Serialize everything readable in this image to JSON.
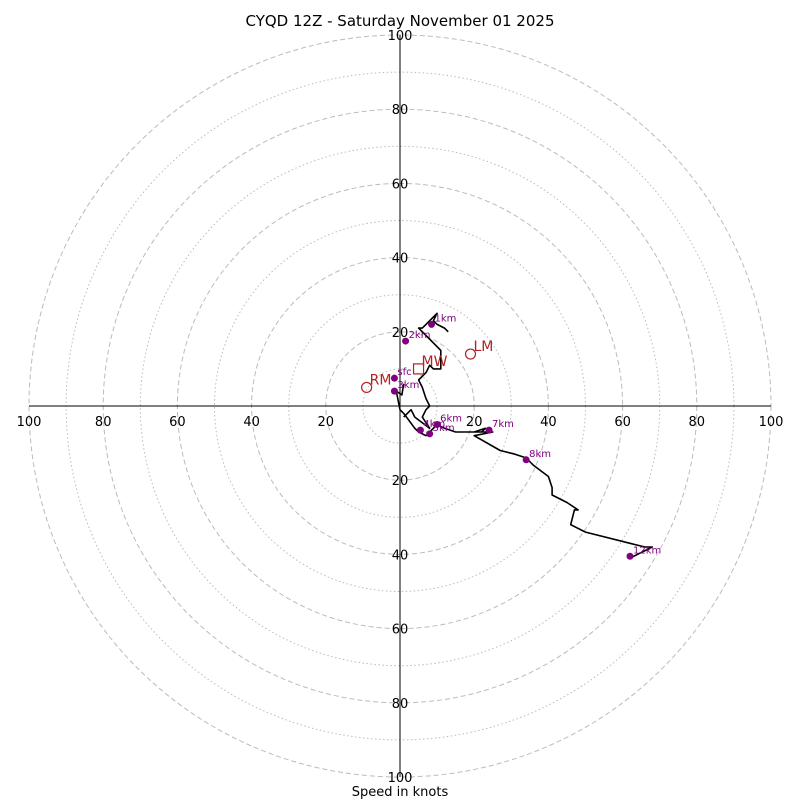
{
  "chart_data": {
    "type": "hodograph",
    "title": "CYQD 12Z - Saturday November 01 2025",
    "xlabel": "Speed in knots",
    "rings": {
      "major_step": 20,
      "minor_step": 10,
      "max": 100
    },
    "tick_labels": [
      "20",
      "40",
      "60",
      "80",
      "100"
    ],
    "trace": [
      [
        1,
        6
      ],
      [
        0.5,
        3
      ],
      [
        -1,
        4
      ],
      [
        0,
        -1
      ],
      [
        1,
        -2
      ],
      [
        4,
        -6
      ],
      [
        5,
        -7
      ],
      [
        7,
        -8
      ],
      [
        8,
        -7
      ],
      [
        10,
        -5
      ],
      [
        12,
        -6
      ],
      [
        15,
        -7
      ],
      [
        19,
        -7
      ],
      [
        22,
        -7
      ],
      [
        23,
        -6
      ],
      [
        20,
        -7
      ],
      [
        24,
        -7
      ],
      [
        25,
        -7
      ],
      [
        20,
        -8
      ],
      [
        27,
        -12
      ],
      [
        31,
        -13
      ],
      [
        34,
        -14
      ],
      [
        36,
        -16
      ],
      [
        40,
        -19
      ],
      [
        41,
        -22
      ],
      [
        41,
        -24
      ],
      [
        45,
        -26
      ],
      [
        48,
        -28
      ],
      [
        47,
        -28
      ],
      [
        46,
        -32
      ],
      [
        50,
        -34
      ],
      [
        62,
        -37
      ],
      [
        66,
        -38
      ],
      [
        68,
        -38
      ],
      [
        62,
        -41
      ],
      null,
      [
        1,
        -3
      ],
      [
        3,
        -1
      ],
      [
        4,
        -3
      ],
      [
        8,
        -6
      ],
      [
        6,
        -3
      ],
      [
        7,
        -1
      ],
      [
        8,
        0
      ],
      [
        7,
        2
      ],
      [
        6,
        5
      ],
      [
        5,
        7
      ],
      [
        7,
        9
      ],
      [
        8,
        11
      ],
      [
        9,
        10
      ],
      [
        11,
        10
      ],
      [
        11,
        13
      ],
      [
        11,
        15
      ],
      [
        9,
        17
      ],
      [
        7,
        19
      ],
      [
        5,
        21
      ],
      [
        6,
        21
      ],
      [
        7,
        22
      ],
      [
        8,
        23
      ],
      [
        9,
        24
      ],
      [
        10,
        25
      ],
      [
        9,
        23
      ],
      [
        10,
        22
      ],
      [
        12,
        21
      ],
      [
        13,
        20
      ]
    ],
    "height_markers": [
      {
        "label": "sfc",
        "u": -1.5,
        "v": 7.5
      },
      {
        "label": "1km",
        "u": 8.5,
        "v": 22
      },
      {
        "label": "2km",
        "u": 1.5,
        "v": 17.5
      },
      {
        "label": "3km",
        "u": -1.5,
        "v": 4
      },
      {
        "label": "4km",
        "u": 5.5,
        "v": -6.5
      },
      {
        "label": "5km",
        "u": 8,
        "v": -7.5
      },
      {
        "label": "6km",
        "u": 10,
        "v": -5
      },
      {
        "label": "7km",
        "u": 24,
        "v": -6.5
      },
      {
        "label": "8km",
        "u": 34,
        "v": -14.5
      },
      {
        "label": "12km",
        "u": 62,
        "v": -40.5
      }
    ],
    "motion_markers": [
      {
        "label": "MW",
        "u": 5,
        "v": 10,
        "symbol": "square"
      },
      {
        "label": "LM",
        "u": 19,
        "v": 14,
        "symbol": "circle"
      },
      {
        "label": "RM",
        "u": -9,
        "v": 5,
        "symbol": "circle"
      }
    ],
    "colors": {
      "trace": "#000000",
      "height_marker": "#800080",
      "motion": "#b22222",
      "grid": "#bbbbbb"
    }
  }
}
